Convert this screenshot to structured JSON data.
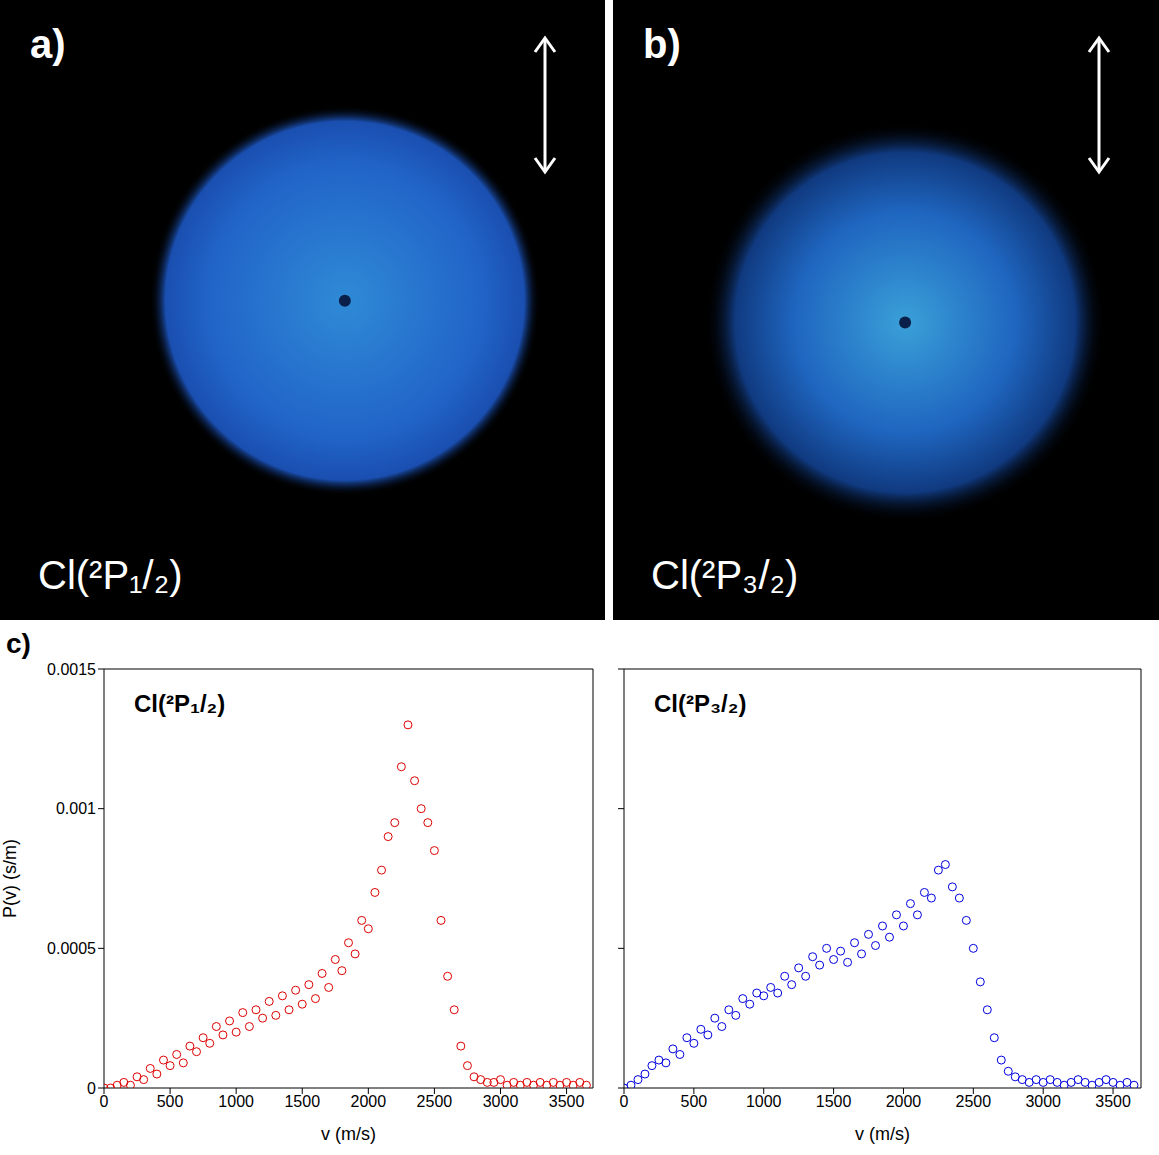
{
  "images": [
    {
      "letter": "a)",
      "label": "Cl(²P₁/₂)"
    },
    {
      "letter": "b)",
      "label": "Cl(²P₃/₂)"
    }
  ],
  "letter": "c)",
  "chart_data": [
    {
      "type": "scatter",
      "title": "Cl(²P₁/₂)",
      "x_label": "v (m/s)",
      "y_label": "P(v) (s/m)",
      "xlim": [
        0,
        3700
      ],
      "xticks": [
        0,
        500,
        1000,
        1500,
        2000,
        2500,
        3000,
        3500
      ],
      "ylim": [
        0,
        0.0015
      ],
      "yticks": [
        0,
        0.0005,
        0.001,
        0.0015
      ],
      "grid": false,
      "marker": "circle",
      "color": "#dd0000",
      "x": [
        0,
        50,
        100,
        150,
        200,
        250,
        300,
        350,
        400,
        450,
        500,
        550,
        600,
        650,
        700,
        750,
        800,
        850,
        900,
        950,
        1000,
        1050,
        1100,
        1150,
        1200,
        1250,
        1300,
        1350,
        1400,
        1450,
        1500,
        1550,
        1600,
        1650,
        1700,
        1750,
        1800,
        1850,
        1900,
        1950,
        2000,
        2050,
        2100,
        2150,
        2200,
        2250,
        2300,
        2350,
        2400,
        2450,
        2500,
        2550,
        2600,
        2650,
        2700,
        2750,
        2800,
        2850,
        2900,
        2950,
        3000,
        3050,
        3100,
        3150,
        3200,
        3250,
        3300,
        3350,
        3400,
        3450,
        3500,
        3550,
        3600,
        3650
      ],
      "values": [
        0,
        0,
        1e-05,
        2e-05,
        1e-05,
        4e-05,
        3e-05,
        7e-05,
        5e-05,
        0.0001,
        8e-05,
        0.00012,
        9e-05,
        0.00015,
        0.00013,
        0.00018,
        0.00016,
        0.00022,
        0.00019,
        0.00024,
        0.0002,
        0.00027,
        0.00022,
        0.00028,
        0.00025,
        0.00031,
        0.00026,
        0.00033,
        0.00028,
        0.00035,
        0.0003,
        0.00037,
        0.00032,
        0.00041,
        0.00036,
        0.00046,
        0.00042,
        0.00052,
        0.00048,
        0.0006,
        0.00057,
        0.0007,
        0.00078,
        0.0009,
        0.00095,
        0.00115,
        0.0013,
        0.0011,
        0.001,
        0.00095,
        0.00085,
        0.0006,
        0.0004,
        0.00028,
        0.00015,
        8e-05,
        4e-05,
        3e-05,
        2e-05,
        2e-05,
        3e-05,
        1e-05,
        2e-05,
        1e-05,
        2e-05,
        1e-05,
        2e-05,
        1e-05,
        2e-05,
        1e-05,
        2e-05,
        1e-05,
        2e-05,
        1e-05
      ]
    },
    {
      "type": "scatter",
      "title": "Cl(²P₃/₂)",
      "x_label": "v (m/s)",
      "xlim": [
        0,
        3700
      ],
      "xticks": [
        0,
        500,
        1000,
        1500,
        2000,
        2500,
        3000,
        3500
      ],
      "ylim": [
        0,
        0.0015
      ],
      "yticks": [
        0,
        0.0005,
        0.001,
        0.0015
      ],
      "grid": false,
      "tick_labels": "x",
      "marker": "circle",
      "color": "#0000dd",
      "x": [
        0,
        50,
        100,
        150,
        200,
        250,
        300,
        350,
        400,
        450,
        500,
        550,
        600,
        650,
        700,
        750,
        800,
        850,
        900,
        950,
        1000,
        1050,
        1100,
        1150,
        1200,
        1250,
        1300,
        1350,
        1400,
        1450,
        1500,
        1550,
        1600,
        1650,
        1700,
        1750,
        1800,
        1850,
        1900,
        1950,
        2000,
        2050,
        2100,
        2150,
        2200,
        2250,
        2300,
        2350,
        2400,
        2450,
        2500,
        2550,
        2600,
        2650,
        2700,
        2750,
        2800,
        2850,
        2900,
        2950,
        3000,
        3050,
        3100,
        3150,
        3200,
        3250,
        3300,
        3350,
        3400,
        3450,
        3500,
        3550,
        3600,
        3650
      ],
      "values": [
        0,
        1e-05,
        3e-05,
        5e-05,
        8e-05,
        0.0001,
        9e-05,
        0.00014,
        0.00012,
        0.00018,
        0.00016,
        0.00021,
        0.00019,
        0.00025,
        0.00022,
        0.00028,
        0.00026,
        0.00032,
        0.0003,
        0.00034,
        0.00033,
        0.00036,
        0.00034,
        0.0004,
        0.00037,
        0.00043,
        0.0004,
        0.00047,
        0.00044,
        0.0005,
        0.00046,
        0.00049,
        0.00045,
        0.00052,
        0.00048,
        0.00055,
        0.00051,
        0.00058,
        0.00054,
        0.00062,
        0.00058,
        0.00066,
        0.00062,
        0.0007,
        0.00068,
        0.00078,
        0.0008,
        0.00072,
        0.00068,
        0.0006,
        0.0005,
        0.00038,
        0.00028,
        0.00018,
        0.0001,
        6e-05,
        4e-05,
        3e-05,
        2e-05,
        3e-05,
        2e-05,
        3e-05,
        2e-05,
        1e-05,
        2e-05,
        3e-05,
        2e-05,
        1e-05,
        2e-05,
        3e-05,
        2e-05,
        1e-05,
        2e-05,
        1e-05
      ]
    }
  ]
}
